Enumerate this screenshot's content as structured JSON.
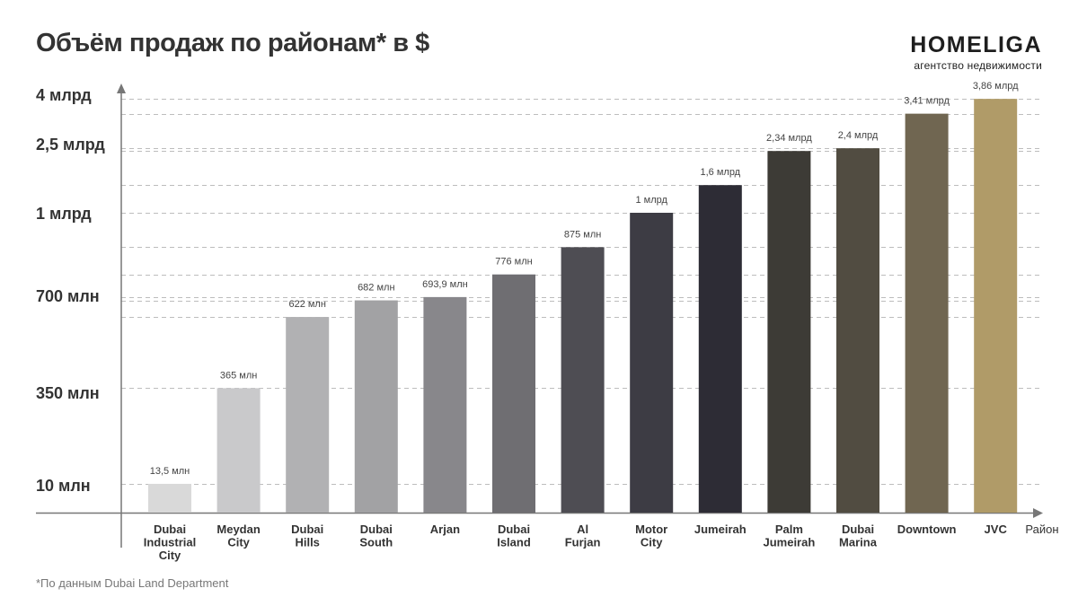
{
  "header": {
    "title": "Объём продаж по районам* в $",
    "brand_name": "HOMELIGA",
    "brand_tagline": "агентство недвижимости"
  },
  "footnote": "*По данным Dubai Land Department",
  "chart_data": {
    "type": "bar",
    "title": "Объём продаж по районам* в $",
    "xlabel": "Район",
    "ylabel": "",
    "y_scale": "non-linear",
    "y_ticks": [
      "10 млн",
      "350 млн",
      "700 млн",
      "1 млрд",
      "2,5 млрд",
      "4 млрд"
    ],
    "grid": "dashed horizontal",
    "categories": [
      [
        "Dubai",
        "Industrial",
        "City"
      ],
      [
        "Meydan",
        "City"
      ],
      [
        "Dubai",
        "Hills"
      ],
      [
        "Dubai",
        "South"
      ],
      [
        "Arjan"
      ],
      [
        "Dubai",
        "Island"
      ],
      [
        "Al",
        "Furjan"
      ],
      [
        "Motor",
        "City"
      ],
      [
        "Jumeirah"
      ],
      [
        "Palm",
        "Jumeirah"
      ],
      [
        "Dubai",
        "Marina"
      ],
      [
        "Downtown"
      ],
      [
        "JVC"
      ]
    ],
    "values_usd": [
      13500000,
      365000000,
      622000000,
      682000000,
      693900000,
      776000000,
      875000000,
      1000000000,
      1600000000,
      2340000000,
      2400000000,
      3410000000,
      3860000000
    ],
    "data_labels": [
      "13,5 млн",
      "365 млн",
      "622 млн",
      "682 млн",
      "693,9 млн",
      "776 млн",
      "875 млн",
      "1 млрд",
      "1,6 млрд",
      "2,34 млрд",
      "2,4 млрд",
      "3,41 млрд",
      "3,86 млрд"
    ],
    "colors": [
      "#d9d9d9",
      "#c9c9cb",
      "#b1b1b3",
      "#a2a2a4",
      "#88878b",
      "#6f6e72",
      "#4e4d53",
      "#3d3c44",
      "#2d2c35",
      "#3d3b36",
      "#514c41",
      "#706651",
      "#b09b68"
    ]
  }
}
